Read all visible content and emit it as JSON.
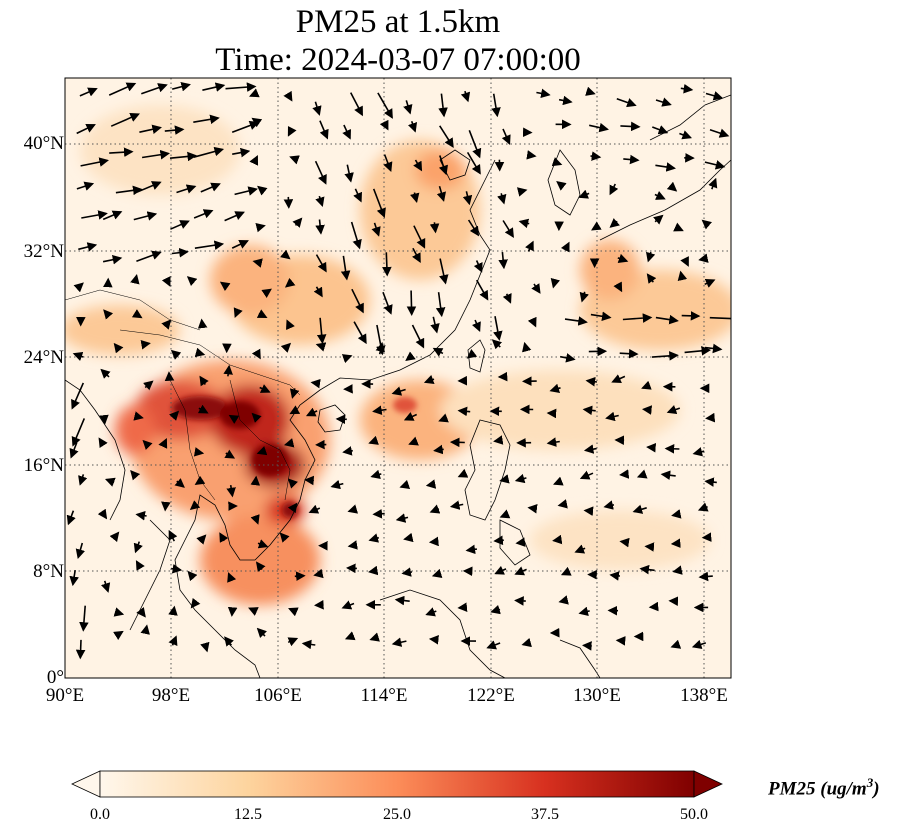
{
  "title": {
    "line1": "PM25 at 1.5km",
    "line2": "Time: 2024-03-07 07:00:00"
  },
  "map": {
    "variable": "PM25",
    "level": "1.5km",
    "extent": {
      "lon": [
        90,
        140
      ],
      "lat": [
        0,
        45
      ]
    },
    "gridlines": "dotted",
    "lat_ticks": [
      "0°",
      "8°N",
      "16°N",
      "24°N",
      "32°N",
      "40°N"
    ],
    "lon_ticks": [
      "90°E",
      "98°E",
      "106°E",
      "114°E",
      "122°E",
      "130°E",
      "138°E"
    ],
    "wind_vectors": true
  },
  "colorbar": {
    "colormap": "OrRd",
    "label": "PM25",
    "unit_prefix": "(ug/m",
    "unit_exp": "3",
    "unit_suffix": ")",
    "ticks": [
      "0.0",
      "12.5",
      "25.0",
      "37.5",
      "50.0"
    ],
    "extend": "both",
    "colors": [
      "#fff7ec",
      "#fdd49e",
      "#fc8d59",
      "#d7301f",
      "#7f0000"
    ]
  }
}
